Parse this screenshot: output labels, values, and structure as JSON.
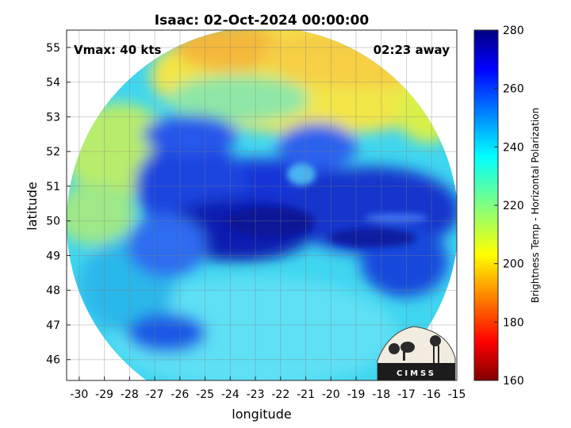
{
  "title": "Isaac: 02-Oct-2024 00:00:00",
  "vmax_label": "Vmax: 40 kts",
  "time_label": "02:23 away",
  "xlabel": "longitude",
  "ylabel": "latitude",
  "colorbar_label": "Brightness Temp - Horizontal Polarization",
  "logo_text": "CIMSS",
  "x_ticks": [
    "-30",
    "-29",
    "-28",
    "-27",
    "-26",
    "-25",
    "-24",
    "-23",
    "-22",
    "-21",
    "-20",
    "-19",
    "-18",
    "-17",
    "-16",
    "-15"
  ],
  "y_ticks": [
    "55",
    "54",
    "53",
    "52",
    "51",
    "50",
    "49",
    "48",
    "47",
    "46"
  ],
  "colorbar_ticks": [
    "280",
    "260",
    "240",
    "220",
    "200",
    "180",
    "160"
  ],
  "map": {
    "xlim": [
      -30.5,
      -15
    ],
    "ylim": [
      45.4,
      55.5
    ],
    "colorbar_range": [
      160,
      280
    ],
    "colormap": "jet",
    "swath_shape": "circular",
    "scene": {
      "coldest_region": "dark blue band from about -27 to -15 longitude, 48.5 to 52 latitude",
      "warm_region": "yellow/orange in northern part above 52.5 latitude",
      "background_outside_swath": "white"
    },
    "grid": true
  }
}
